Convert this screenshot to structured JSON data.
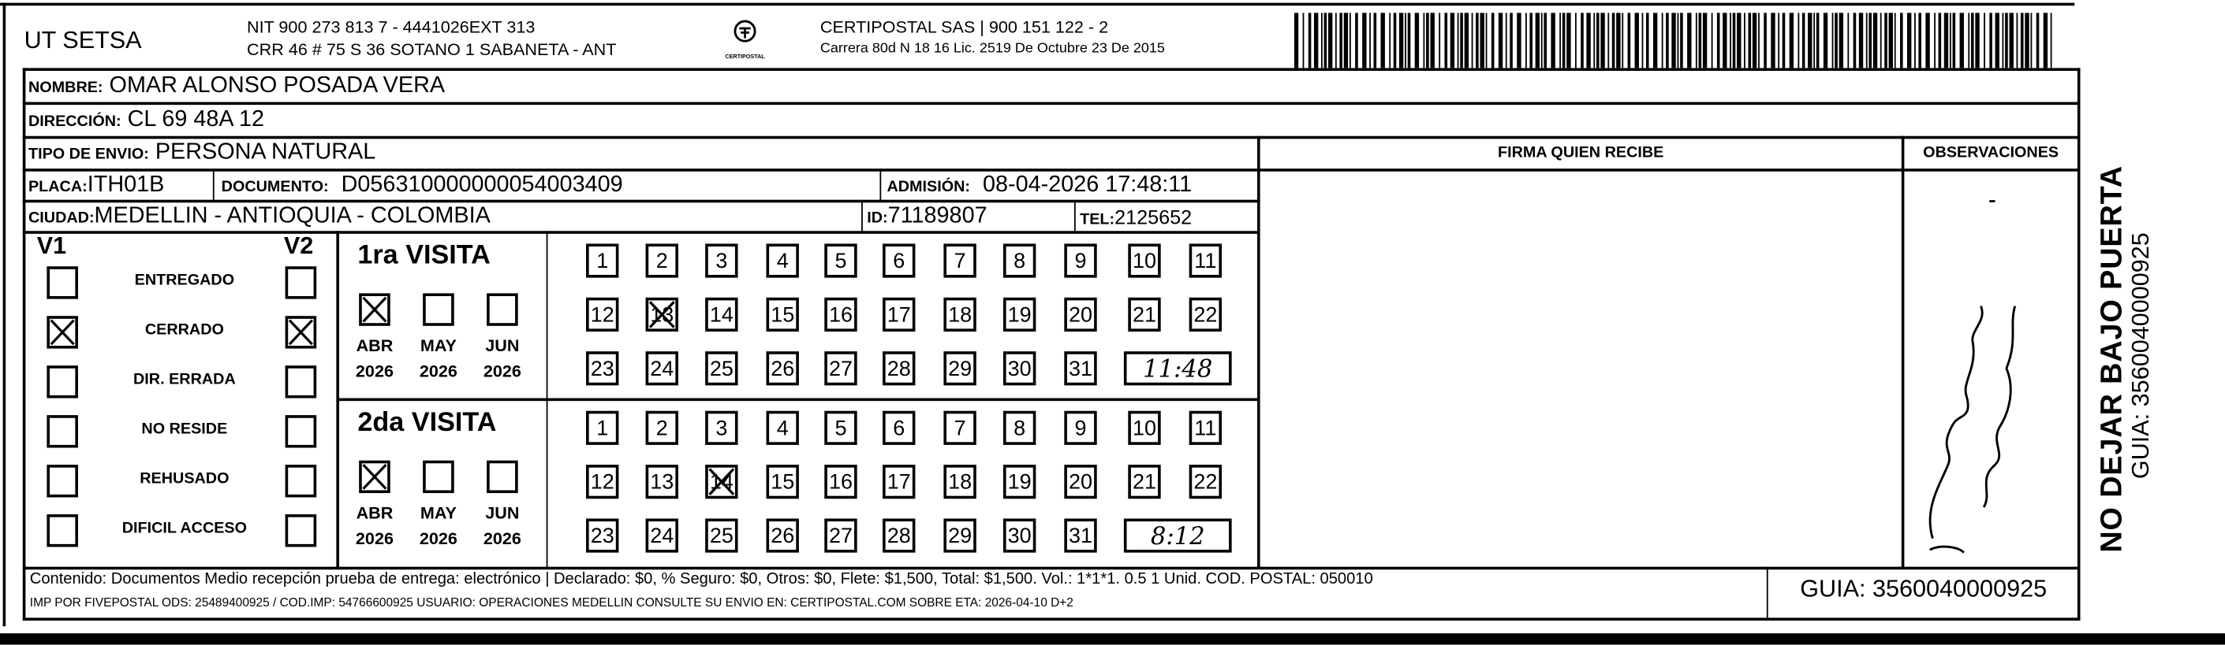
{
  "header": {
    "company": "UT SETSA",
    "nit_line": "NIT 900 273 813 7 - 4441026EXT 313",
    "address_line": "CRR 46 # 75 S 36 SOTANO 1 SABANETA - ANT",
    "logo_text": "CERTIPOSTAL",
    "carrier_line": "CERTIPOSTAL SAS | 900 151 122 - 2",
    "license_line": "Carrera 80d N 18 16  Lic. 2519 De Octubre 23 De 2015",
    "barcode_icon": "barcode-icon"
  },
  "recipient": {
    "nombre_label": "NOMBRE:",
    "nombre": "OMAR ALONSO POSADA VERA",
    "direccion_label": "DIRECCIÓN:",
    "direccion": "CL 69 48A 12",
    "tipo_label": "TIPO DE ENVIO:",
    "tipo": "PERSONA NATURAL",
    "placa_label": "PLACA:",
    "placa": "ITH01B",
    "documento_label": "DOCUMENTO:",
    "documento": "D056310000000054003409",
    "admision_label": "ADMISIÓN:",
    "admision": "08-04-2026 17:48:11",
    "ciudad_label": "CIUDAD:",
    "ciudad": "MEDELLIN - ANTIOQUIA - COLOMBIA",
    "id_label": "ID:",
    "id": "71189807",
    "tel_label": "TEL:",
    "tel": "2125652"
  },
  "signature": {
    "firma_label": "FIRMA QUIEN RECIBE",
    "observaciones_label": "OBSERVACIONES"
  },
  "status": {
    "v1_label": "V1",
    "v2_label": "V2",
    "items": [
      {
        "label": "ENTREGADO",
        "v1": false,
        "v2": false
      },
      {
        "label": "CERRADO",
        "v1": true,
        "v2": true
      },
      {
        "label": "DIR. ERRADA",
        "v1": false,
        "v2": false
      },
      {
        "label": "NO RESIDE",
        "v1": false,
        "v2": false
      },
      {
        "label": "REHUSADO",
        "v1": false,
        "v2": false
      },
      {
        "label": "DIFICIL ACCESO",
        "v1": false,
        "v2": false
      }
    ]
  },
  "visits": [
    {
      "title": "1ra VISITA",
      "months": [
        {
          "month": "ABR",
          "year": "2026",
          "checked": true
        },
        {
          "month": "MAY",
          "year": "2026",
          "checked": false
        },
        {
          "month": "JUN",
          "year": "2026",
          "checked": false
        }
      ],
      "marked_day": 13,
      "time": "11:48"
    },
    {
      "title": "2da VISITA",
      "months": [
        {
          "month": "ABR",
          "year": "2026",
          "checked": true
        },
        {
          "month": "MAY",
          "year": "2026",
          "checked": false
        },
        {
          "month": "JUN",
          "year": "2026",
          "checked": false
        }
      ],
      "marked_day": 14,
      "time": "8:12"
    }
  ],
  "side": {
    "warning": "NO DEJAR BAJO PUERTA",
    "guia": "GUIA: 3560040000925"
  },
  "footer": {
    "contenido": "Contenido: Documentos Medio recepción prueba de entrega: electrónico | Declarado: $0, % Seguro: $0, Otros: $0, Flete: $1,500, Total: $1,500. Vol.: 1*1*1. 0.5  1 Unid. COD. POSTAL: 050010",
    "imp": "IMP POR FIVEPOSTAL ODS: 25489400925 / COD.IMP: 54766600925 USUARIO: OPERACIONES MEDELLIN CONSULTE SU ENVIO EN: CERTIPOSTAL.COM SOBRE ETA: 2026-04-10 D+2",
    "guia": "GUIA: 3560040000925"
  }
}
